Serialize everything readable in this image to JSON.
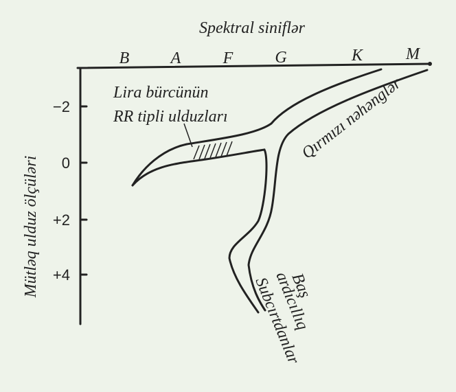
{
  "title": "Spektral siniflər",
  "y_axis_label": "Mütləq ulduz ölçüləri",
  "spectral_classes": [
    "B",
    "A",
    "F",
    "G",
    "K",
    "M"
  ],
  "magnitude_ticks": [
    "−2",
    "0",
    "+2",
    "+4"
  ],
  "labels": {
    "rr_lyrae_line1": "Lira bürcünün",
    "rr_lyrae_line2": "RR tipli ulduzları",
    "red_giants": "Qırmızı nəhənglər",
    "main_sequence_line1": "Baş",
    "main_sequence_line2": "ardıcıllıq",
    "subdwarfs": "Subcırtdanlar"
  }
}
